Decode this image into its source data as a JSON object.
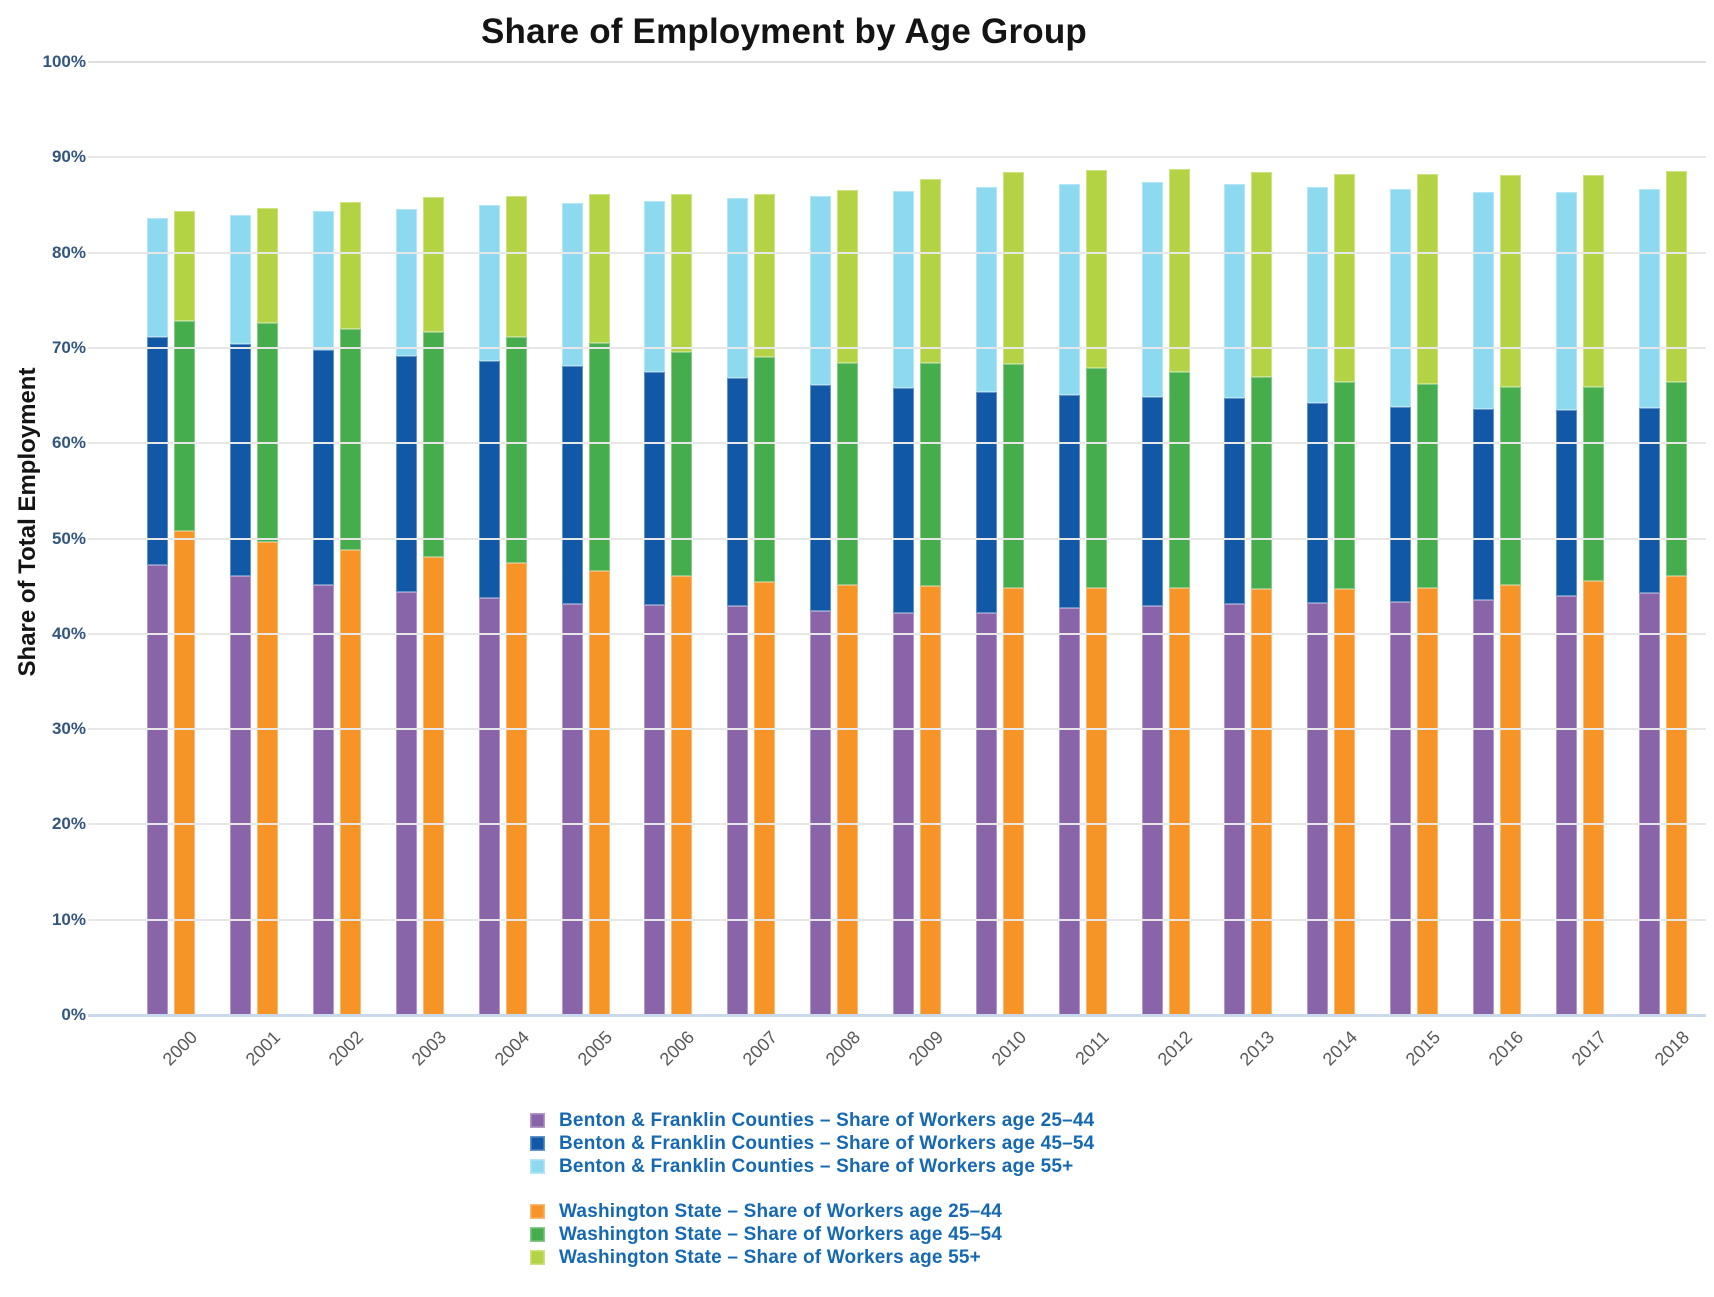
{
  "title": "Share of Employment by Age Group",
  "y_axis": {
    "title": "Share of Total Employment",
    "tick_labels": [
      "100%",
      "90%",
      "80%",
      "70%",
      "60%",
      "50%",
      "40%",
      "30%",
      "20%",
      "10%",
      "0%"
    ]
  },
  "colors": {
    "benton_25_44": "#8964a8",
    "benton_45_54": "#1159a6",
    "benton_55_plus": "#8cd9f0",
    "wa_25_44": "#f79428",
    "wa_45_54": "#45ad4b",
    "wa_55_plus": "#b3d244",
    "gridline": "#e7e7e7",
    "baseline": "#c9d8ea",
    "y_tick_text": "#33567d",
    "x_tick_text": "#58595b",
    "legend_text": "#1569b3",
    "title_text": "#141414"
  },
  "chart_data": {
    "type": "bar",
    "stacked": true,
    "title": "Share of Employment by Age Group",
    "xlabel": "",
    "ylabel": "Share of Total Employment",
    "ylim": [
      0,
      100
    ],
    "grid": true,
    "legend_position": "bottom",
    "categories": [
      "2000",
      "2001",
      "2002",
      "2003",
      "2004",
      "2005",
      "2006",
      "2007",
      "2008",
      "2009",
      "2010",
      "2011",
      "2012",
      "2013",
      "2014",
      "2015",
      "2016",
      "2017",
      "2018"
    ],
    "groups": [
      {
        "name": "Benton & Franklin Counties",
        "series": [
          {
            "name": "Benton & Franklin Counties – Share of Workers age 25–44",
            "color_key": "benton_25_44",
            "values": [
              47.2,
              46.1,
              45.1,
              44.4,
              43.8,
              43.1,
              43.0,
              42.9,
              42.4,
              42.2,
              42.2,
              42.7,
              42.9,
              43.1,
              43.2,
              43.3,
              43.5,
              44.0,
              44.3
            ]
          },
          {
            "name": "Benton & Franklin Counties – Share of Workers age 45–54",
            "color_key": "benton_45_54",
            "values": [
              23.9,
              24.3,
              24.7,
              24.8,
              24.8,
              25.0,
              24.5,
              23.9,
              23.7,
              23.6,
              23.2,
              22.4,
              22.0,
              21.6,
              21.0,
              20.5,
              20.1,
              19.5,
              19.4
            ]
          },
          {
            "name": "Benton & Franklin Counties – Share of Workers age 55+",
            "color_key": "benton_55_plus",
            "values": [
              12.5,
              13.5,
              14.6,
              15.4,
              16.4,
              17.1,
              17.9,
              18.9,
              19.8,
              20.7,
              21.5,
              22.1,
              22.5,
              22.5,
              22.7,
              22.9,
              22.8,
              22.9,
              23.0
            ]
          }
        ]
      },
      {
        "name": "Washington State",
        "series": [
          {
            "name": "Washington State – Share of Workers age 25–44",
            "color_key": "wa_25_44",
            "values": [
              50.8,
              49.6,
              48.8,
              48.1,
              47.4,
              46.6,
              46.1,
              45.4,
              45.1,
              45.0,
              44.8,
              44.8,
              44.8,
              44.7,
              44.7,
              44.8,
              45.1,
              45.5,
              46.1
            ]
          },
          {
            "name": "Washington State – Share of Workers age 45–54",
            "color_key": "wa_45_54",
            "values": [
              22.0,
              23.0,
              23.2,
              23.6,
              23.7,
              23.9,
              23.5,
              23.6,
              23.3,
              23.4,
              23.5,
              23.1,
              22.7,
              22.2,
              21.7,
              21.4,
              20.8,
              20.4,
              20.3
            ]
          },
          {
            "name": "Washington State – Share of Workers age 55+",
            "color_key": "wa_55_plus",
            "values": [
              11.6,
              12.1,
              13.3,
              14.1,
              14.8,
              15.6,
              16.5,
              17.2,
              18.2,
              19.3,
              20.2,
              20.8,
              21.3,
              21.6,
              21.9,
              22.1,
              22.2,
              22.2,
              22.2
            ]
          }
        ]
      }
    ]
  }
}
